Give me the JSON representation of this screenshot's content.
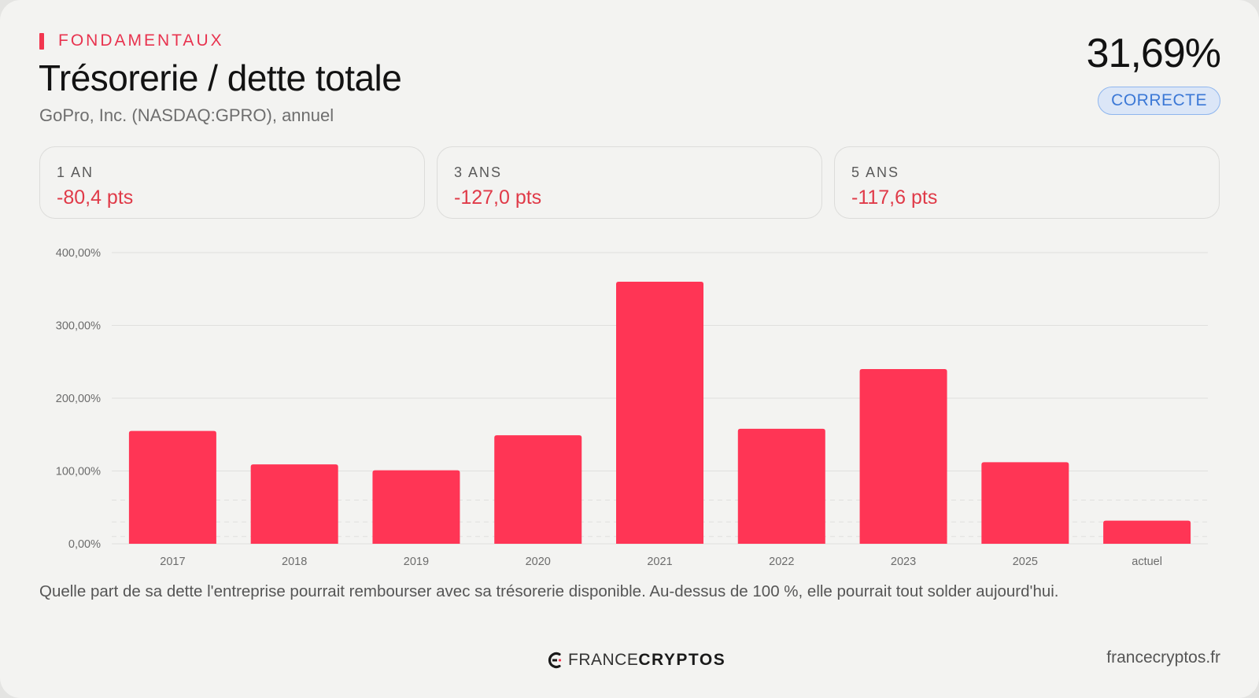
{
  "header": {
    "eyebrow": "FONDAMENTAUX",
    "title": "Trésorerie / dette totale",
    "subtitle": "GoPro, Inc. (NASDAQ:GPRO), annuel",
    "current_value": "31,69%",
    "status": "CORRECTE"
  },
  "stats": [
    {
      "label": "1 AN",
      "value": "-80,4 pts"
    },
    {
      "label": "3 ANS",
      "value": "-127,0 pts"
    },
    {
      "label": "5 ANS",
      "value": "-117,6 pts"
    }
  ],
  "chart_data": {
    "type": "bar",
    "categories": [
      "2017",
      "2018",
      "2019",
      "2020",
      "2021",
      "2022",
      "2023",
      "2025",
      "actuel"
    ],
    "values": [
      155,
      109,
      101,
      149,
      360,
      158,
      240,
      112,
      31.69
    ],
    "ylim": [
      0,
      400
    ],
    "yticks": [
      0,
      100,
      200,
      300,
      400
    ],
    "ytick_labels": [
      "0,00%",
      "100,00%",
      "200,00%",
      "300,00%",
      "400,00%"
    ],
    "grid": true,
    "bar_color": "#ff3555"
  },
  "description": "Quelle part de sa dette l'entreprise pourrait rembourser avec sa trésorerie disponible. Au-dessus de 100 %, elle pourrait tout solder aujourd'hui.",
  "footer": {
    "brand_light": "FRANCE",
    "brand_bold": "CRYPTOS",
    "site": "francecryptos.fr"
  },
  "colors": {
    "accent": "#f2364f",
    "negative": "#e03a48",
    "status_text": "#3b78d6",
    "status_bg": "#dbe6f7"
  }
}
